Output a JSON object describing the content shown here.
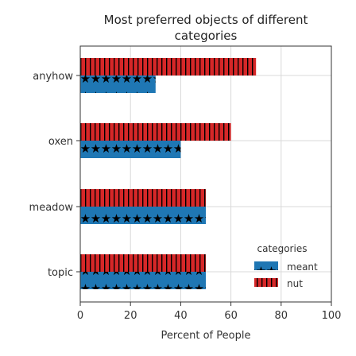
{
  "chart_data": {
    "type": "bar",
    "orientation": "horizontal",
    "title_lines": [
      "Most preferred objects of different",
      "categories"
    ],
    "xlabel": "Percent of People",
    "ylabel": "",
    "categories": [
      "anyhow",
      "oxen",
      "meadow",
      "topic"
    ],
    "xlim": [
      0,
      100
    ],
    "xticks": [
      0,
      20,
      40,
      60,
      80,
      100
    ],
    "grid": true,
    "legend": {
      "title": "categories",
      "position": "lower-right"
    },
    "series": [
      {
        "name": "meant",
        "values": [
          30,
          40,
          50,
          50
        ],
        "color": "#1f77b4",
        "pattern": "stars"
      },
      {
        "name": "nut",
        "values": [
          70,
          60,
          50,
          50
        ],
        "color": "#d62728",
        "pattern": "vertical-lines"
      }
    ]
  }
}
